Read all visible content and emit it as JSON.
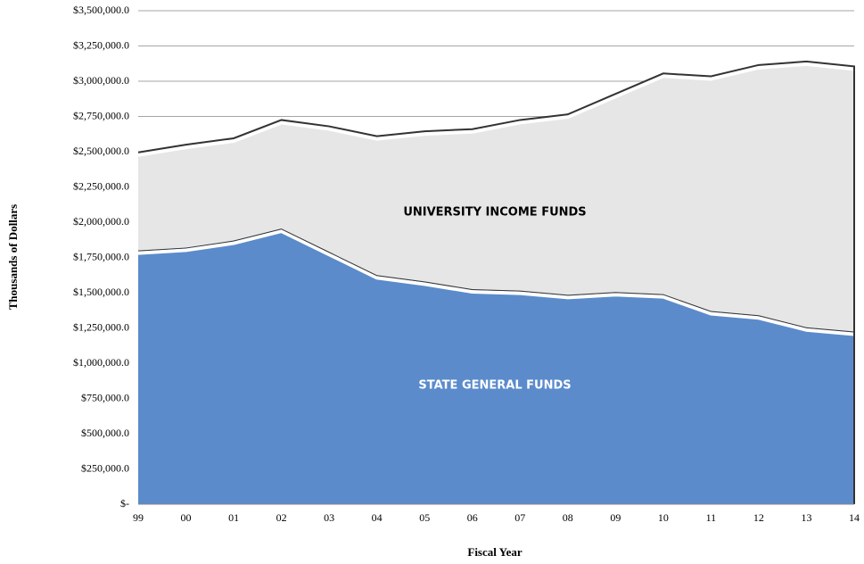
{
  "chart_data": {
    "type": "stacked-area",
    "x_label": "Fiscal Year",
    "y_label": "Thousands of Dollars",
    "categories": [
      "99",
      "00",
      "01",
      "02",
      "03",
      "04",
      "05",
      "06",
      "07",
      "08",
      "09",
      "10",
      "11",
      "12",
      "13",
      "14"
    ],
    "series": [
      {
        "name": "STATE GENERAL FUNDS",
        "color": "#5b8bcb",
        "values": [
          1800000,
          1820000,
          1870000,
          1955000,
          1790000,
          1625000,
          1580000,
          1525000,
          1515000,
          1485000,
          1505000,
          1490000,
          1370000,
          1340000,
          1255000,
          1225000
        ]
      },
      {
        "name": "UNIVERSITY INCOME FUNDS",
        "color": "#e6e6e6",
        "values": [
          695000,
          730000,
          725000,
          770000,
          890000,
          985000,
          1065000,
          1135000,
          1210000,
          1280000,
          1405000,
          1565000,
          1665000,
          1775000,
          1885000,
          1880000
        ]
      }
    ],
    "ylim": [
      0,
      3500000
    ],
    "yticks": [
      {
        "value": 0,
        "label": "$-"
      },
      {
        "value": 250000,
        "label": "$250,000.0"
      },
      {
        "value": 500000,
        "label": "$500,000.0"
      },
      {
        "value": 750000,
        "label": "$750,000.0"
      },
      {
        "value": 1000000,
        "label": "$1,000,000.0"
      },
      {
        "value": 1250000,
        "label": "$1,250,000.0"
      },
      {
        "value": 1500000,
        "label": "$1,500,000.0"
      },
      {
        "value": 1750000,
        "label": "$1,750,000.0"
      },
      {
        "value": 2000000,
        "label": "$2,000,000.0"
      },
      {
        "value": 2250000,
        "label": "$2,250,000.0"
      },
      {
        "value": 2500000,
        "label": "$2,500,000.0"
      },
      {
        "value": 2750000,
        "label": "$2,750,000.0"
      },
      {
        "value": 3000000,
        "label": "$3,000,000.0"
      },
      {
        "value": 3250000,
        "label": "$3,250,000.0"
      },
      {
        "value": 3500000,
        "label": "$3,500,000.0"
      }
    ],
    "grid": true
  }
}
